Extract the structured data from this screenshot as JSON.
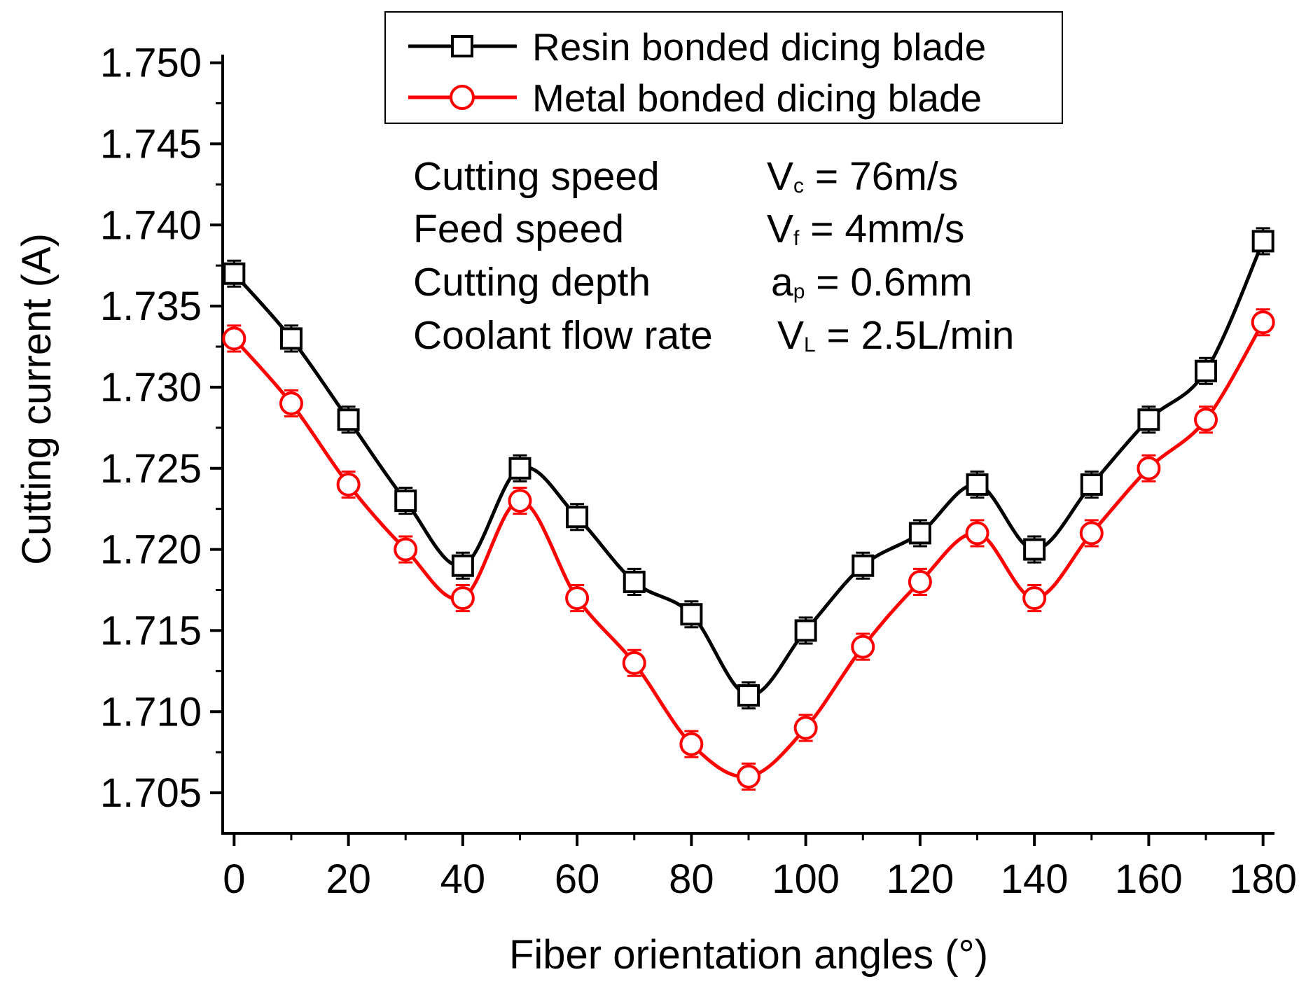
{
  "chart_data": {
    "type": "line",
    "xlabel": "Fiber orientation angles (°)",
    "ylabel": "Cutting current (A)",
    "xlim": [
      -2,
      182
    ],
    "ylim": [
      1.7025,
      1.7505
    ],
    "x_ticks": [
      0,
      20,
      40,
      60,
      80,
      100,
      120,
      140,
      160,
      180
    ],
    "x_tick_labels": [
      "0",
      "20",
      "40",
      "60",
      "80",
      "100",
      "120",
      "140",
      "160",
      "180"
    ],
    "y_ticks": [
      1.705,
      1.71,
      1.715,
      1.72,
      1.725,
      1.73,
      1.735,
      1.74,
      1.745,
      1.75
    ],
    "y_tick_labels": [
      "1.705",
      "1.710",
      "1.715",
      "1.720",
      "1.725",
      "1.730",
      "1.735",
      "1.740",
      "1.745",
      "1.750"
    ],
    "x": [
      0,
      10,
      20,
      30,
      40,
      50,
      60,
      70,
      80,
      90,
      100,
      110,
      120,
      130,
      140,
      150,
      160,
      170,
      180
    ],
    "error": 0.0008,
    "legend_position": "top-right",
    "series": [
      {
        "name": "Resin bonded dicing blade",
        "color": "#000000",
        "marker": "square",
        "values": [
          1.737,
          1.733,
          1.728,
          1.723,
          1.719,
          1.725,
          1.722,
          1.718,
          1.716,
          1.711,
          1.715,
          1.719,
          1.721,
          1.724,
          1.72,
          1.724,
          1.728,
          1.731,
          1.739
        ]
      },
      {
        "name": "Metal bonded dicing blade",
        "color": "#ff0000",
        "marker": "circle",
        "values": [
          1.733,
          1.729,
          1.724,
          1.72,
          1.717,
          1.723,
          1.717,
          1.713,
          1.708,
          1.706,
          1.709,
          1.714,
          1.718,
          1.721,
          1.717,
          1.721,
          1.725,
          1.728,
          1.734
        ]
      }
    ],
    "annotations": [
      {
        "label": "Cutting speed",
        "symbol": "V",
        "sub": "c",
        "value": " = 76m/s"
      },
      {
        "label": "Feed speed",
        "symbol": "V",
        "sub": "f",
        "value": " = 4mm/s"
      },
      {
        "label": "Cutting depth",
        "symbol": "a",
        "sub": "p",
        "value": " = 0.6mm"
      },
      {
        "label": "Coolant flow rate",
        "symbol": "V",
        "sub": "L",
        "value": " = 2.5L/min"
      }
    ]
  }
}
